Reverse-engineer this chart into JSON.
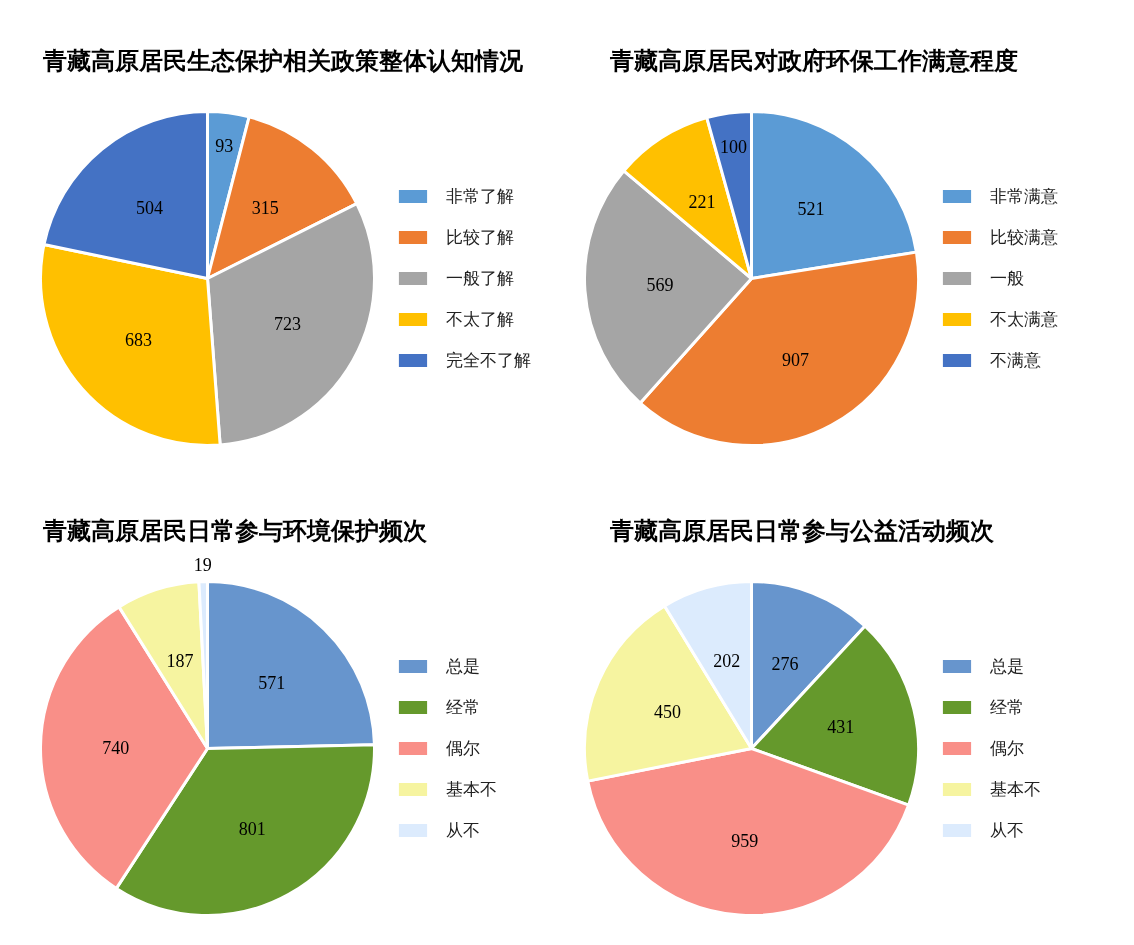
{
  "chart_data": [
    {
      "type": "pie",
      "title": "青藏高原居民生态保护相关政策整体认知情况",
      "categories": [
        "非常了解",
        "比较了解",
        "一般了解",
        "不太了解",
        "完全不了解"
      ],
      "values": [
        93,
        315,
        723,
        683,
        504
      ],
      "colors": [
        "#5b9bd5",
        "#ed7d31",
        "#a5a5a5",
        "#ffc000",
        "#4472c4"
      ],
      "data_labels": true,
      "legend": "right"
    },
    {
      "type": "pie",
      "title": "青藏高原居民对政府环保工作满意程度",
      "categories": [
        "非常满意",
        "比较满意",
        "一般",
        "不太满意",
        "不满意"
      ],
      "values": [
        521,
        907,
        569,
        221,
        100
      ],
      "colors": [
        "#5b9bd5",
        "#ed7d31",
        "#a5a5a5",
        "#ffc000",
        "#4472c4"
      ],
      "data_labels": true,
      "legend": "right"
    },
    {
      "type": "pie",
      "title": "青藏高原居民日常参与环境保护频次",
      "categories": [
        "总是",
        "经常",
        "偶尔",
        "基本不",
        "从不"
      ],
      "values": [
        571,
        801,
        740,
        187,
        19
      ],
      "colors": [
        "#6795cd",
        "#65992c",
        "#f98f88",
        "#f6f4a0",
        "#dcebfd"
      ],
      "data_labels": true,
      "legend": "right"
    },
    {
      "type": "pie",
      "title": "青藏高原居民日常参与公益活动频次",
      "categories": [
        "总是",
        "经常",
        "偶尔",
        "基本不",
        "从不"
      ],
      "values": [
        276,
        431,
        959,
        450,
        202
      ],
      "colors": [
        "#6795cd",
        "#65992c",
        "#f98f88",
        "#f6f4a0",
        "#dcebfd"
      ],
      "data_labels": true,
      "legend": "right"
    }
  ]
}
